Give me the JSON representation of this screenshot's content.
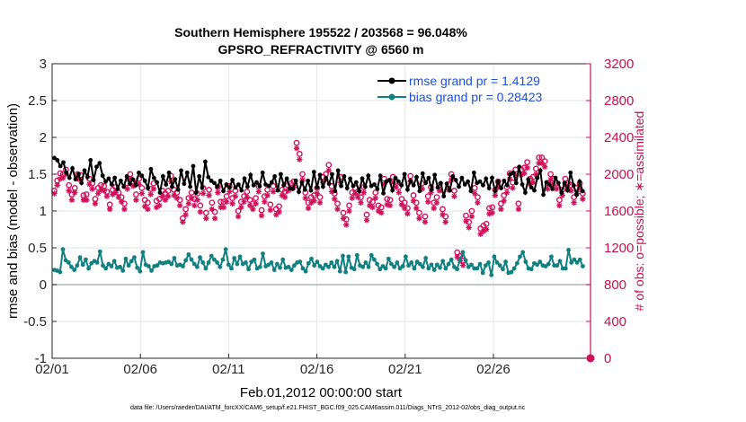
{
  "chart_data": {
    "type": "line",
    "title": "Southern Hemisphere 195522 / 203568 = 96.048%",
    "subtitle": "GPSRO_REFRACTIVITY @ 6560 m",
    "xlabel": "Feb.01,2012 00:00:00 start",
    "ylabel": "rmse and bias (model - observation)",
    "y2label": "# of obs: o=possible; ∗=assimilated",
    "footer": "data file: /Users/raeder/DAI/ATM_forcXX/CAM6_setup/f.e21.FHIST_BGC.f09_025.CAM6assim.011/Diags_NTrS_2012-02/obs_diag_output.nc",
    "xlim": [
      0,
      30.5
    ],
    "ylim": [
      -1,
      3
    ],
    "y2lim": [
      0,
      3200
    ],
    "x_ticks": [
      0,
      5,
      10,
      15,
      20,
      25
    ],
    "x_tick_labels": [
      "02/01",
      "02/06",
      "02/11",
      "02/16",
      "02/21",
      "02/26"
    ],
    "y_ticks": [
      -1,
      -0.5,
      0,
      0.5,
      1,
      1.5,
      2,
      2.5,
      3
    ],
    "y_tick_labels": [
      "-1",
      "-0.5",
      "0",
      "0.5",
      "1",
      "1.5",
      "2",
      "2.5",
      "3"
    ],
    "y2_ticks": [
      0,
      400,
      800,
      1200,
      1600,
      2000,
      2400,
      2800,
      3200
    ],
    "y2_tick_labels": [
      "0",
      "400",
      "800",
      "1200",
      "1600",
      "2000",
      "2400",
      "2800",
      "3200"
    ],
    "grid": true,
    "legend_position": "top-right",
    "colors": {
      "rmse": "#000000",
      "bias": "#108080",
      "obs": "#d0105a",
      "legend_text": "#1f4fd6",
      "zero_line": "#b3b3b3",
      "grid": "#e6e6e6"
    },
    "series": [
      {
        "name": "rmse grand pr = 1.4129",
        "values": [
          1.72,
          1.69,
          1.61,
          1.66,
          1.52,
          1.45,
          1.58,
          1.43,
          1.5,
          1.38,
          1.55,
          1.46,
          1.69,
          1.42,
          1.6,
          1.65,
          1.48,
          1.4,
          1.44,
          1.36,
          1.45,
          1.3,
          1.41,
          1.33,
          1.47,
          1.37,
          1.43,
          1.35,
          1.52,
          1.48,
          1.41,
          1.31,
          1.57,
          1.45,
          1.39,
          1.25,
          1.47,
          1.36,
          1.52,
          1.33,
          1.43,
          1.29,
          1.55,
          1.37,
          1.52,
          1.33,
          1.61,
          1.25,
          1.47,
          1.32,
          1.67,
          1.46,
          1.41,
          1.38,
          1.33,
          1.41,
          1.27,
          1.36,
          1.32,
          1.42,
          1.32,
          1.36,
          1.28,
          1.44,
          1.33,
          1.49,
          1.35,
          1.39,
          1.34,
          1.52,
          1.36,
          1.34,
          1.39,
          1.47,
          1.28,
          1.5,
          1.35,
          1.44,
          1.31,
          1.3,
          1.41,
          1.26,
          1.39,
          1.29,
          1.41,
          1.28,
          1.53,
          1.32,
          1.49,
          1.33,
          1.45,
          1.37,
          1.5,
          1.27,
          1.55,
          1.34,
          1.47,
          1.31,
          1.44,
          1.34,
          1.39,
          1.27,
          1.44,
          1.33,
          1.48,
          1.34,
          1.36,
          1.3,
          1.48,
          1.24,
          1.4,
          1.42,
          1.28,
          1.45,
          1.4,
          1.35,
          1.5,
          1.29,
          1.41,
          1.35,
          1.46,
          1.27,
          1.51,
          1.38,
          1.45,
          1.29,
          1.49,
          1.32,
          1.38,
          1.2,
          1.37,
          1.28,
          1.47,
          1.42,
          1.33,
          1.45,
          1.36,
          1.4,
          1.27,
          1.52,
          1.38,
          1.4,
          1.35,
          1.44,
          1.31,
          1.45,
          1.27,
          1.4,
          1.31,
          1.41,
          1.35,
          1.5,
          1.52,
          1.38,
          1.6,
          1.36,
          1.25,
          1.43,
          1.32,
          1.28,
          1.45,
          1.55,
          1.22,
          1.39,
          1.36,
          1.3,
          1.45,
          1.38,
          1.25,
          1.38,
          1.28,
          1.52,
          1.35,
          1.22,
          1.4,
          1.27
        ]
      },
      {
        "name": "bias grand pr = 0.28423",
        "values": [
          0.2,
          0.19,
          0.17,
          0.48,
          0.33,
          0.3,
          0.24,
          0.2,
          0.26,
          0.37,
          0.27,
          0.34,
          0.22,
          0.29,
          0.32,
          0.3,
          0.45,
          0.26,
          0.22,
          0.28,
          0.25,
          0.32,
          0.23,
          0.24,
          0.19,
          0.35,
          0.26,
          0.32,
          0.37,
          0.23,
          0.18,
          0.44,
          0.27,
          0.25,
          0.19,
          0.25,
          0.26,
          0.3,
          0.29,
          0.3,
          0.31,
          0.28,
          0.36,
          0.26,
          0.27,
          0.25,
          0.33,
          0.41,
          0.34,
          0.28,
          0.24,
          0.37,
          0.3,
          0.22,
          0.3,
          0.39,
          0.34,
          0.3,
          0.24,
          0.34,
          0.48,
          0.27,
          0.22,
          0.36,
          0.28,
          0.38,
          0.28,
          0.3,
          0.21,
          0.31,
          0.34,
          0.22,
          0.24,
          0.42,
          0.25,
          0.27,
          0.3,
          0.2,
          0.28,
          0.23,
          0.34,
          0.23,
          0.24,
          0.2,
          0.26,
          0.3,
          0.31,
          0.22,
          0.18,
          0.29,
          0.35,
          0.26,
          0.31,
          0.25,
          0.22,
          0.27,
          0.24,
          0.3,
          0.24,
          0.32,
          0.18,
          0.39,
          0.17,
          0.38,
          0.23,
          0.21,
          0.4,
          0.26,
          0.24,
          0.3,
          0.24,
          0.4,
          0.34,
          0.28,
          0.21,
          0.25,
          0.22,
          0.35,
          0.28,
          0.24,
          0.3,
          0.22,
          0.25,
          0.38,
          0.26,
          0.3,
          0.22,
          0.31,
          0.28,
          0.24,
          0.36,
          0.22,
          0.27,
          0.2,
          0.27,
          0.23,
          0.32,
          0.22,
          0.28,
          0.34,
          0.24,
          0.21,
          0.34,
          0.44,
          0.33,
          0.24,
          0.27,
          0.22,
          0.22,
          0.28,
          0.16,
          0.26,
          0.3,
          0.13,
          0.38,
          0.3,
          0.26,
          0.21,
          0.31,
          0.16,
          0.17,
          0.22,
          0.29,
          0.38,
          0.44,
          0.31,
          0.22,
          0.21,
          0.29,
          0.27,
          0.31,
          0.26,
          0.25,
          0.28,
          0.38,
          0.26,
          0.26,
          0.32,
          0.22,
          0.22,
          0.47,
          0.3,
          0.34,
          0.3,
          0.34,
          0.25
        ]
      }
    ],
    "obs_possible": [
      1820,
      1930,
      2010,
      2000,
      2050,
      1880,
      1780,
      1850,
      2000,
      1990,
      1770,
      1780,
      1950,
      1900,
      1730,
      1850,
      1880,
      1870,
      1810,
      1670,
      1830,
      1860,
      1800,
      1750,
      1680,
      1900,
      2000,
      1920,
      1780,
      1950,
      1850,
      1720,
      1690,
      1840,
      1900,
      1710,
      1730,
      1820,
      1790,
      1820,
      1980,
      1830,
      1800,
      1720,
      1520,
      1620,
      1740,
      1800,
      1730,
      1790,
      1660,
      1850,
      1580,
      1830,
      1690,
      1590,
      1860,
      1700,
      1700,
      1760,
      1870,
      1740,
      1820,
      1600,
      1700,
      1760,
      1810,
      1720,
      1680,
      1740,
      1870,
      1610,
      1760,
      1830,
      1670,
      1870,
      1620,
      1650,
      1830,
      1810,
      1880,
      1900,
      1920,
      2340,
      2220,
      2000,
      1800,
      1690,
      1750,
      1770,
      1850,
      1750,
      1970,
      2000,
      2100,
      1870,
      1790,
      1680,
      1970,
      1580,
      1510,
      1660,
      1800,
      1850,
      1810,
      1750,
      1860,
      1560,
      1720,
      1700,
      1800,
      1660,
      1640,
      1950,
      1730,
      1720,
      1970,
      1920,
      1860,
      1730,
      1690,
      1630,
      1980,
      1770,
      1690,
      1580,
      1900,
      1540,
      1760,
      1860,
      1690,
      1750,
      1880,
      1620,
      1540,
      1890,
      2000,
      1820,
      1150,
      1110,
      1060,
      1550,
      1480,
      1600,
      1850,
      1750,
      1410,
      1440,
      1460,
      1630,
      1640,
      1830,
      1920,
      1680,
      1770,
      1860,
      2010,
      1910,
      2050,
      1680,
      2050,
      2070,
      2130,
      1950,
      1970,
      2060,
      2180,
      2180,
      2140,
      1900,
      2000,
      1950,
      1900,
      1720,
      1830,
      1950,
      1900,
      1880,
      1750,
      1850,
      1900,
      1790
    ],
    "obs_assimilated": [
      1790,
      1880,
      1950,
      1960,
      2000,
      1820,
      1720,
      1800,
      1950,
      1940,
      1720,
      1720,
      1890,
      1840,
      1680,
      1790,
      1830,
      1820,
      1760,
      1620,
      1780,
      1800,
      1750,
      1700,
      1620,
      1840,
      1950,
      1870,
      1720,
      1890,
      1790,
      1650,
      1620,
      1780,
      1840,
      1640,
      1660,
      1760,
      1720,
      1760,
      1920,
      1770,
      1740,
      1660,
      1480,
      1560,
      1680,
      1740,
      1660,
      1720,
      1590,
      1790,
      1520,
      1770,
      1620,
      1520,
      1800,
      1640,
      1640,
      1700,
      1810,
      1680,
      1760,
      1540,
      1640,
      1700,
      1750,
      1660,
      1620,
      1680,
      1810,
      1550,
      1700,
      1770,
      1610,
      1810,
      1560,
      1590,
      1770,
      1750,
      1820,
      1840,
      1860,
      2280,
      2160,
      1940,
      1740,
      1630,
      1690,
      1710,
      1790,
      1690,
      1910,
      1940,
      2040,
      1810,
      1730,
      1620,
      1910,
      1520,
      1450,
      1600,
      1740,
      1790,
      1750,
      1690,
      1800,
      1500,
      1660,
      1640,
      1740,
      1600,
      1580,
      1890,
      1670,
      1660,
      1910,
      1860,
      1800,
      1670,
      1630,
      1570,
      1920,
      1710,
      1630,
      1520,
      1840,
      1480,
      1700,
      1800,
      1630,
      1690,
      1820,
      1560,
      1480,
      1830,
      1940,
      1760,
      1100,
      1060,
      1010,
      1490,
      1420,
      1540,
      1790,
      1690,
      1350,
      1380,
      1400,
      1570,
      1580,
      1770,
      1860,
      1620,
      1710,
      1800,
      1950,
      1850,
      1990,
      1620,
      1990,
      2010,
      2070,
      1890,
      1910,
      2000,
      2120,
      2120,
      2080,
      1840,
      1940,
      1890,
      1840,
      1660,
      1770,
      1890,
      1840,
      1820,
      1690,
      1790,
      1840,
      1730
    ],
    "obs_extra_marker": {
      "x": 30.5,
      "y2": 0
    }
  }
}
